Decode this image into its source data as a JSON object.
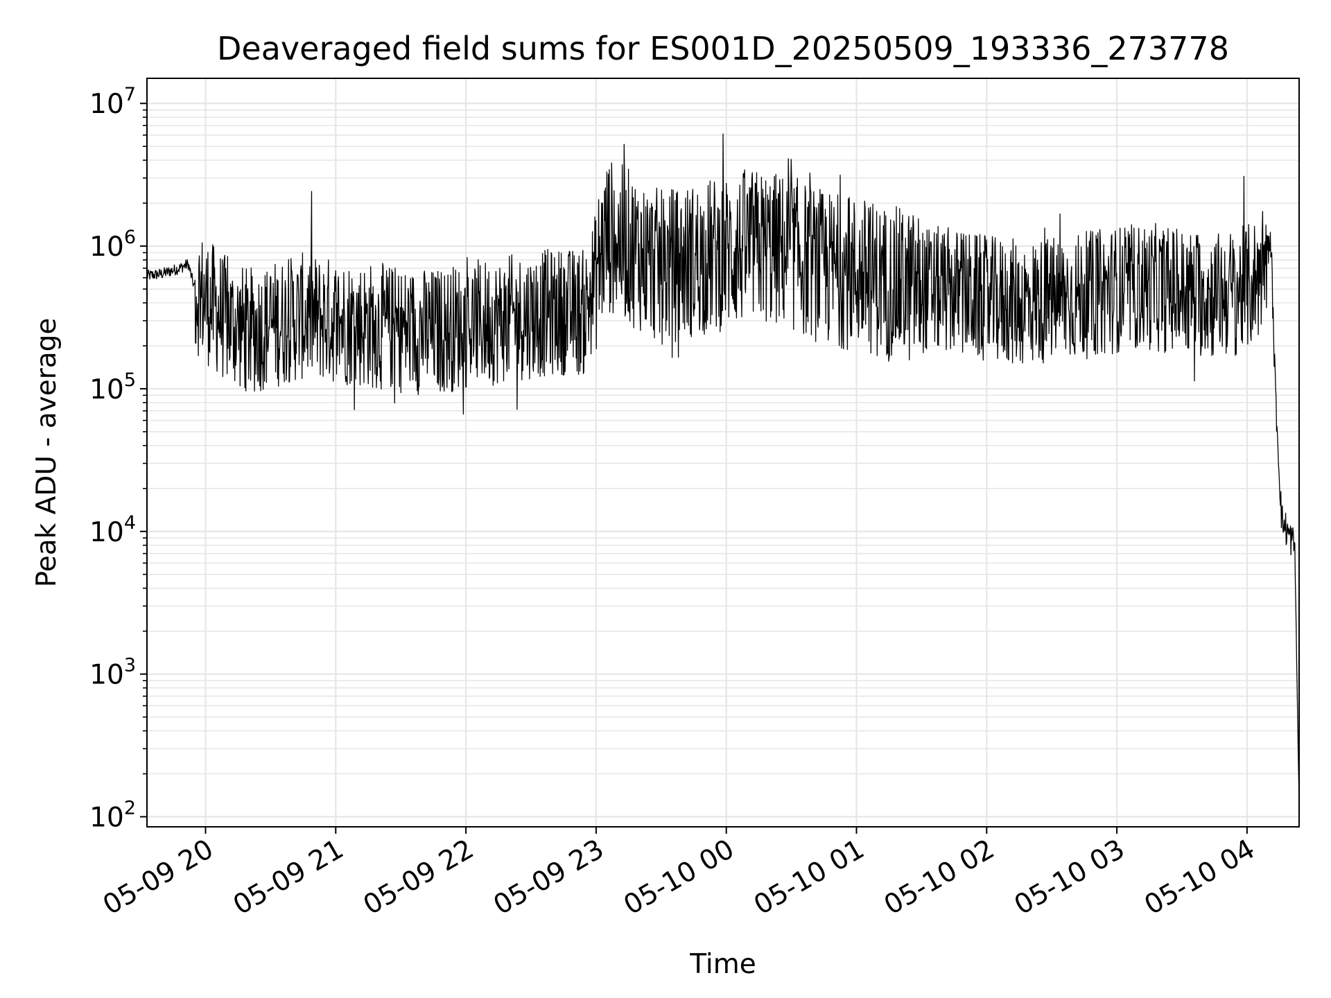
{
  "chart_data": {
    "type": "line",
    "title": "Deaveraged field sums for ES001D_20250509_193336_273778",
    "xlabel": "Time",
    "ylabel": "Peak ADU - average",
    "yscale": "log",
    "ylim": [
      85,
      15000000
    ],
    "xlim": [
      "05-09 19:33",
      "05-10 04:24"
    ],
    "grid": true,
    "line_color": "#000000",
    "grid_color": "#e6e6e6",
    "x_ticks": [
      "05-09 20",
      "05-09 21",
      "05-09 22",
      "05-09 23",
      "05-10 00",
      "05-10 01",
      "05-10 02",
      "05-10 03",
      "05-10 04"
    ],
    "y_ticks": [
      {
        "value": 100,
        "base": "10",
        "exp": "2"
      },
      {
        "value": 1000,
        "base": "10",
        "exp": "3"
      },
      {
        "value": 10000,
        "base": "10",
        "exp": "4"
      },
      {
        "value": 100000,
        "base": "10",
        "exp": "5"
      },
      {
        "value": 1000000,
        "base": "10",
        "exp": "6"
      },
      {
        "value": 10000000,
        "base": "10",
        "exp": "7"
      }
    ],
    "series": [
      {
        "x": [
          "05-09 19:33",
          "05-09 19:40",
          "05-09 19:48",
          "05-09 19:52",
          "05-09 19:55",
          "05-09 20:00",
          "05-09 20:10",
          "05-09 20:20",
          "05-09 20:30",
          "05-09 20:45",
          "05-09 21:00",
          "05-09 21:15",
          "05-09 21:30",
          "05-09 21:45",
          "05-09 22:00",
          "05-09 22:15",
          "05-09 22:30",
          "05-09 22:45",
          "05-09 22:55",
          "05-09 23:05",
          "05-09 23:15",
          "05-09 23:30",
          "05-09 23:45",
          "05-10 00:00",
          "05-10 00:15",
          "05-10 00:30",
          "05-10 00:45",
          "05-10 01:00",
          "05-10 01:15",
          "05-10 01:30",
          "05-10 01:45",
          "05-10 02:00",
          "05-10 02:15",
          "05-10 02:30",
          "05-10 02:45",
          "05-10 03:00",
          "05-10 03:15",
          "05-10 03:30",
          "05-10 03:45",
          "05-10 04:00",
          "05-10 04:05",
          "05-10 04:09",
          "05-10 04:11",
          "05-10 04:13",
          "05-10 04:16",
          "05-10 04:20",
          "05-10 04:22",
          "05-10 04:24"
        ],
        "y": [
          620000,
          640000,
          700000,
          750000,
          500000,
          420000,
          300000,
          250000,
          280000,
          320000,
          300000,
          280000,
          260000,
          250000,
          280000,
          300000,
          330000,
          350000,
          340000,
          1200000,
          1000000,
          700000,
          800000,
          900000,
          1000000,
          900000,
          700000,
          650000,
          550000,
          500000,
          480000,
          420000,
          400000,
          420000,
          450000,
          500000,
          520000,
          480000,
          450000,
          500000,
          600000,
          900000,
          1100000,
          100000,
          12000,
          9000,
          8000,
          120
        ]
      }
    ]
  }
}
